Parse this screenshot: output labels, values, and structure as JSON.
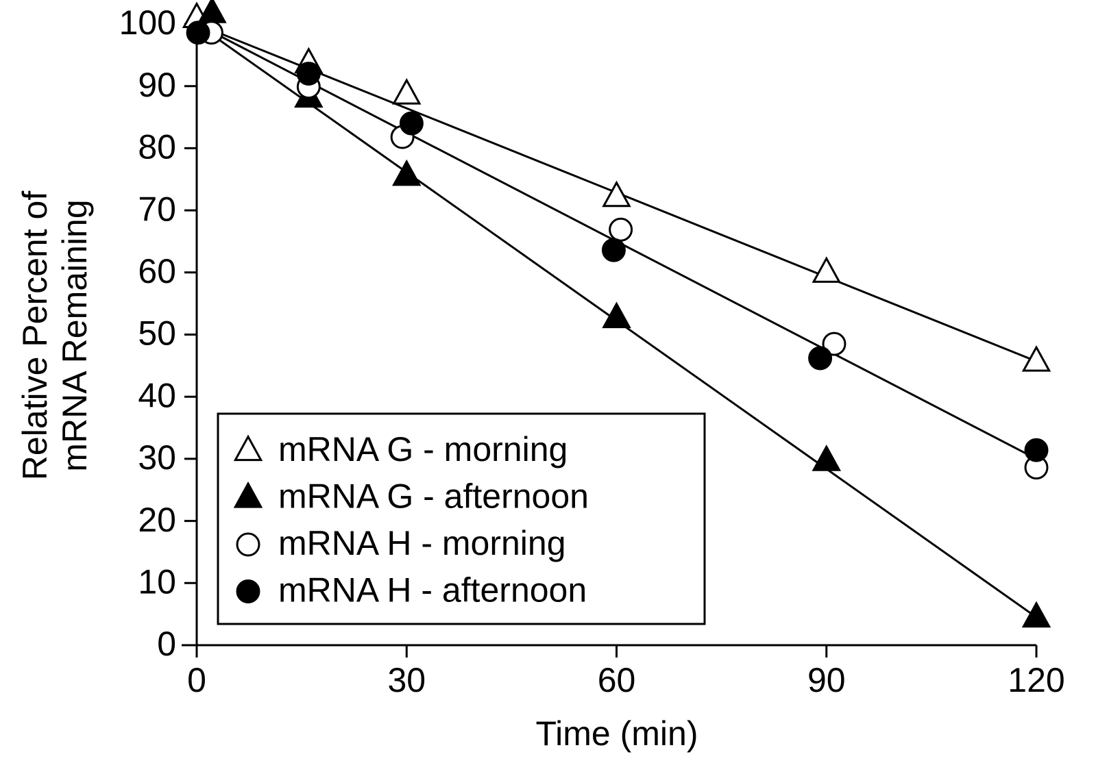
{
  "chart_data": {
    "type": "scatter",
    "xlabel": "Time (min)",
    "ylabel": [
      "Relative Percent of",
      "mRNA Remaining"
    ],
    "xlim": [
      0,
      120
    ],
    "xticks": [
      0,
      30,
      60,
      90,
      120
    ],
    "ylim": [
      0,
      100
    ],
    "yticks": [
      0,
      10,
      20,
      30,
      40,
      50,
      60,
      70,
      80,
      90,
      100
    ],
    "legend": "lower left",
    "series": [
      {
        "name": "mRNA G - morning",
        "color": "#000000",
        "marker": "triangle-open",
        "x": [
          0,
          16,
          30,
          60,
          90,
          120
        ],
        "values": [
          101,
          93.7,
          88.7,
          72.2,
          60,
          45.7
        ]
      },
      {
        "name": "mRNA G - afternoon",
        "color": "#000000",
        "marker": "triangle-filled",
        "x": [
          2.2,
          16,
          30,
          60,
          90,
          120
        ],
        "values": [
          101.8,
          88.2,
          75.6,
          52.7,
          29.7,
          4.5
        ]
      },
      {
        "name": "mRNA H - morning",
        "color": "#000000",
        "marker": "circle-open",
        "x": [
          2.1,
          16,
          29.4,
          60.6,
          91.1,
          120
        ],
        "values": [
          98.6,
          89.9,
          81.8,
          66.9,
          48.5,
          28.6
        ]
      },
      {
        "name": "mRNA H - afternoon",
        "color": "#000000",
        "marker": "circle-filled",
        "x": [
          0.2,
          16,
          30.7,
          59.6,
          89.1,
          120
        ],
        "values": [
          98.6,
          92,
          84,
          63.6,
          46.2,
          31.4
        ]
      }
    ],
    "trend_lines": [
      {
        "x": [
          0,
          120
        ],
        "values": [
          100,
          45.7
        ]
      },
      {
        "x": [
          0,
          120
        ],
        "values": [
          100,
          30
        ]
      },
      {
        "x": [
          0,
          120
        ],
        "values": [
          100,
          4.5
        ]
      }
    ]
  }
}
